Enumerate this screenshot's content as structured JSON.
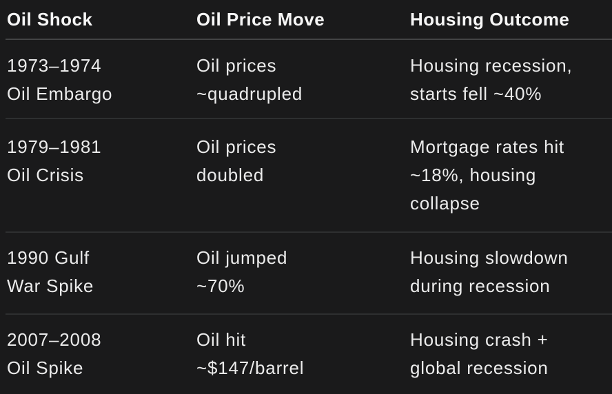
{
  "colors": {
    "background": "#1a1a1b",
    "header_text": "#f6f6f6",
    "body_text": "#ebebeb",
    "header_divider": "#434445",
    "row_divider": "#2e2f30"
  },
  "chart_data": {
    "type": "table",
    "title": "",
    "legend": "none",
    "grid": "horizontal-dividers-only",
    "columns": [
      "Oil Shock",
      "Oil Price Move",
      "Housing Outcome"
    ],
    "rows": [
      {
        "oil_shock": "1973–1974\nOil Embargo",
        "oil_price_move": "Oil prices\n~quadrupled",
        "housing_outcome": "Housing recession,\nstarts fell ~40%"
      },
      {
        "oil_shock": "1979–1981\nOil Crisis",
        "oil_price_move": "Oil prices\ndoubled",
        "housing_outcome": "Mortgage rates hit\n~18%, housing\ncollapse"
      },
      {
        "oil_shock": "1990 Gulf\nWar Spike",
        "oil_price_move": "Oil jumped\n~70%",
        "housing_outcome": "Housing slowdown\nduring recession"
      },
      {
        "oil_shock": "2007–2008\nOil Spike",
        "oil_price_move": "Oil hit\n~$147/barrel",
        "housing_outcome": "Housing crash +\nglobal recession"
      }
    ]
  }
}
